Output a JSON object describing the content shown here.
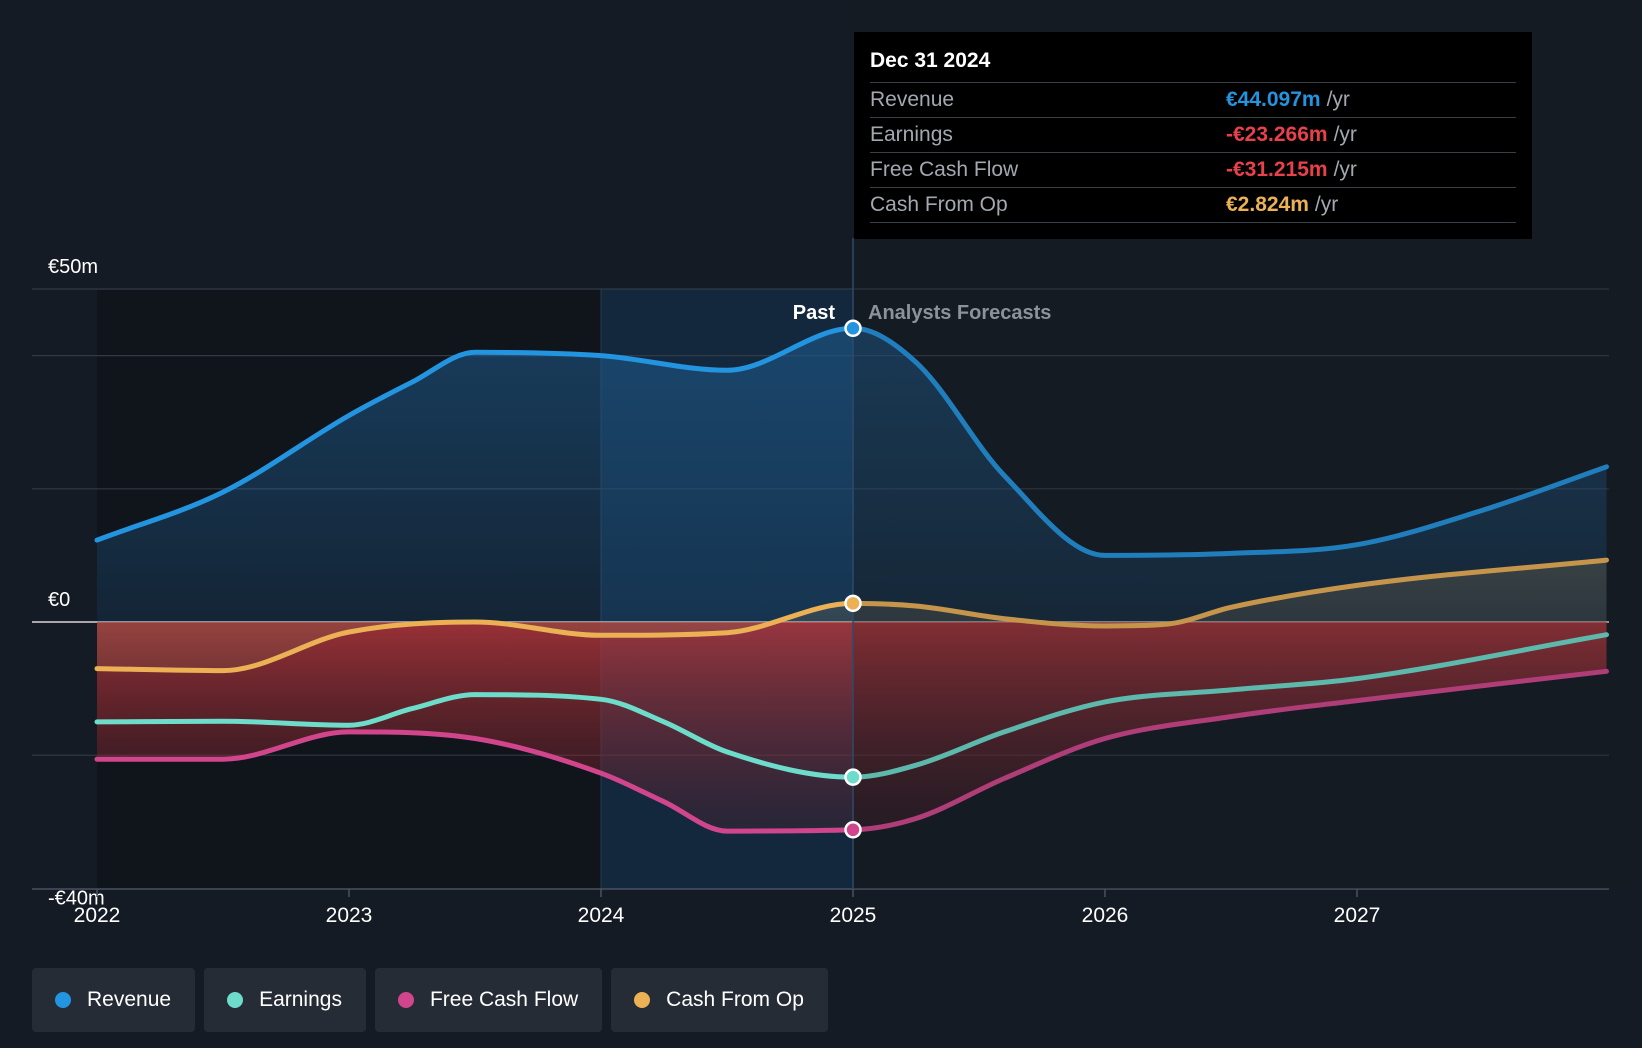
{
  "chart_data": {
    "type": "line",
    "divider": {
      "x": 2025.0,
      "past_label": "Past",
      "forecast_label": "Analysts Forecasts"
    },
    "y_axis": {
      "ylim": [
        -40,
        50
      ],
      "labels": [
        {
          "value": 50,
          "text": "€50m"
        },
        {
          "value": 0,
          "text": "€0"
        },
        {
          "value": -40,
          "text": "-€40m"
        }
      ],
      "gridlines": [
        50,
        40,
        20,
        0,
        -20
      ]
    },
    "x_axis": {
      "xlim": [
        2021.75,
        2027.99
      ],
      "ticks": [
        {
          "value": 2022,
          "text": "2022"
        },
        {
          "value": 2023,
          "text": "2023"
        },
        {
          "value": 2024,
          "text": "2024"
        },
        {
          "value": 2025,
          "text": "2025"
        },
        {
          "value": 2026,
          "text": "2026"
        },
        {
          "value": 2027,
          "text": "2027"
        }
      ]
    },
    "series": [
      {
        "key": "revenue",
        "name": "Revenue",
        "color": "#2394df",
        "points": [
          [
            2022.0,
            12.3
          ],
          [
            2022.5,
            19.5
          ],
          [
            2023.0,
            31.0
          ],
          [
            2023.25,
            36.0
          ],
          [
            2023.5,
            40.5
          ],
          [
            2024.0,
            40.0
          ],
          [
            2024.5,
            37.8
          ],
          [
            2025.0,
            44.1
          ],
          [
            2025.25,
            39.0
          ],
          [
            2025.6,
            22.0
          ],
          [
            2026.0,
            10.0
          ],
          [
            2026.5,
            10.3
          ],
          [
            2027.0,
            11.6
          ],
          [
            2027.5,
            16.8
          ],
          [
            2027.99,
            23.3
          ]
        ]
      },
      {
        "key": "earnings",
        "name": "Earnings",
        "color": "#6ddccb",
        "points": [
          [
            2022.0,
            -15.0
          ],
          [
            2022.5,
            -14.9
          ],
          [
            2023.0,
            -15.5
          ],
          [
            2023.25,
            -13.0
          ],
          [
            2023.5,
            -10.9
          ],
          [
            2024.0,
            -11.6
          ],
          [
            2024.25,
            -15.0
          ],
          [
            2024.5,
            -19.5
          ],
          [
            2025.0,
            -23.3
          ],
          [
            2025.25,
            -21.5
          ],
          [
            2025.6,
            -16.5
          ],
          [
            2026.0,
            -12.0
          ],
          [
            2026.5,
            -10.2
          ],
          [
            2027.0,
            -8.5
          ],
          [
            2027.99,
            -1.9
          ]
        ]
      },
      {
        "key": "fcf",
        "name": "Free Cash Flow",
        "color": "#d1458c",
        "points": [
          [
            2022.0,
            -20.6
          ],
          [
            2022.5,
            -20.6
          ],
          [
            2023.0,
            -16.5
          ],
          [
            2023.5,
            -17.5
          ],
          [
            2024.0,
            -22.7
          ],
          [
            2024.25,
            -27.0
          ],
          [
            2024.5,
            -31.4
          ],
          [
            2025.0,
            -31.2
          ],
          [
            2025.25,
            -29.5
          ],
          [
            2025.6,
            -23.5
          ],
          [
            2026.0,
            -17.5
          ],
          [
            2026.5,
            -14.2
          ],
          [
            2027.0,
            -11.8
          ],
          [
            2027.99,
            -7.4
          ]
        ]
      },
      {
        "key": "cfo",
        "name": "Cash From Op",
        "color": "#ecb055",
        "points": [
          [
            2022.0,
            -7.0
          ],
          [
            2022.5,
            -7.3
          ],
          [
            2023.0,
            -1.5
          ],
          [
            2023.5,
            0.0
          ],
          [
            2024.0,
            -2.0
          ],
          [
            2024.5,
            -1.6
          ],
          [
            2025.0,
            2.8
          ],
          [
            2025.25,
            2.4
          ],
          [
            2025.6,
            0.5
          ],
          [
            2026.0,
            -0.6
          ],
          [
            2026.25,
            -0.3
          ],
          [
            2026.5,
            2.2
          ],
          [
            2027.0,
            5.5
          ],
          [
            2027.99,
            9.3
          ]
        ]
      }
    ]
  },
  "tooltip": {
    "date": "Dec 31 2024",
    "rows": [
      {
        "label": "Revenue",
        "value": "€44.097m",
        "unit": "/yr",
        "color": "#2394df"
      },
      {
        "label": "Earnings",
        "value": "-€23.266m",
        "unit": "/yr",
        "color": "#e8414c"
      },
      {
        "label": "Free Cash Flow",
        "value": "-€31.215m",
        "unit": "/yr",
        "color": "#e8414c"
      },
      {
        "label": "Cash From Op",
        "value": "€2.824m",
        "unit": "/yr",
        "color": "#ecb055"
      }
    ]
  },
  "legend": [
    {
      "label": "Revenue",
      "color": "#2394df"
    },
    {
      "label": "Earnings",
      "color": "#6ddccb"
    },
    {
      "label": "Free Cash Flow",
      "color": "#d1458c"
    },
    {
      "label": "Cash From Op",
      "color": "#ecb055"
    }
  ]
}
